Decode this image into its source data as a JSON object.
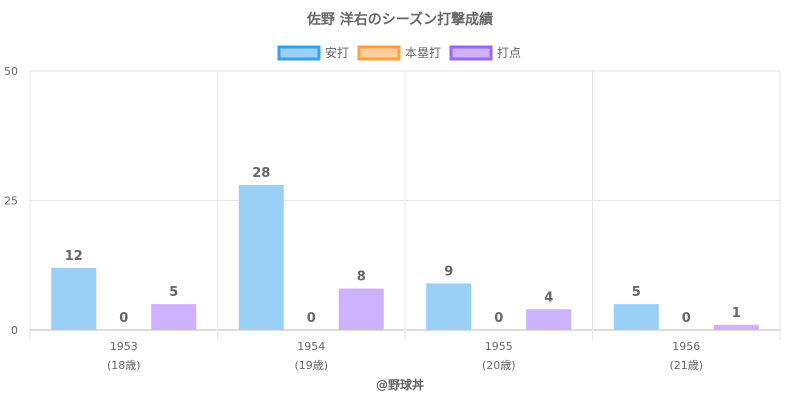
{
  "chart_data": {
    "type": "bar",
    "title": "佐野 洋右のシーズン打撃成績",
    "categories": [
      "1953",
      "1954",
      "1955",
      "1956"
    ],
    "age_labels": [
      "(18歳)",
      "(19歳)",
      "(20歳)",
      "(21歳)"
    ],
    "series": [
      {
        "name": "安打",
        "values": [
          12,
          28,
          9,
          5
        ],
        "fill": "#9ad0f5",
        "stroke": "#36a2eb"
      },
      {
        "name": "本塁打",
        "values": [
          0,
          0,
          0,
          0
        ],
        "fill": "#ffcf9f",
        "stroke": "#ff9f40"
      },
      {
        "name": "打点",
        "values": [
          5,
          8,
          4,
          1
        ],
        "fill": "#ccb2ff",
        "stroke": "#9966ff"
      }
    ],
    "ylim": [
      0,
      50
    ],
    "yticks": [
      "0",
      "25",
      "50"
    ],
    "grid": true,
    "legend_position": "top"
  },
  "credit": "@野球丼"
}
